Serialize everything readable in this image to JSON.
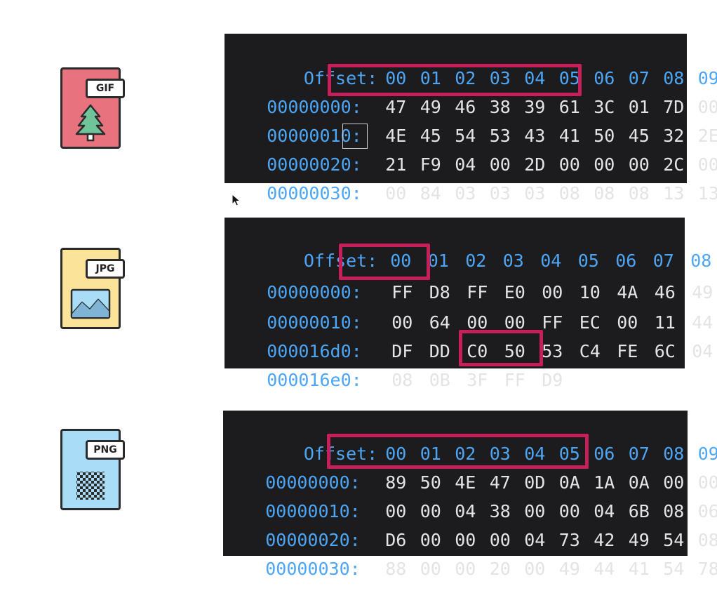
{
  "files": [
    {
      "type": "GIF",
      "label": "GIF",
      "color": "#e8737f",
      "art": "tree-icon"
    },
    {
      "type": "JPG",
      "label": "JPG",
      "color": "#fbe39a",
      "art": "landscape-image-icon"
    },
    {
      "type": "PNG",
      "label": "PNG",
      "color": "#a9dcf6",
      "art": "checkerboard-icon"
    }
  ],
  "hex": [
    {
      "header_label": "Offset:",
      "columns": [
        "00",
        "01",
        "02",
        "03",
        "04",
        "05",
        "06",
        "07",
        "08",
        "09"
      ],
      "rows": [
        {
          "offset": "00000000:",
          "bytes": [
            "47",
            "49",
            "46",
            "38",
            "39",
            "61",
            "3C",
            "01",
            "7D",
            "00"
          ]
        },
        {
          "offset": "00000010:",
          "bytes": [
            "4E",
            "45",
            "54",
            "53",
            "43",
            "41",
            "50",
            "45",
            "32",
            "2E"
          ]
        },
        {
          "offset": "00000020:",
          "bytes": [
            "21",
            "F9",
            "04",
            "00",
            "2D",
            "00",
            "00",
            "00",
            "2C",
            "00"
          ]
        },
        {
          "offset": "00000030:",
          "bytes": [
            "00",
            "84",
            "03",
            "03",
            "03",
            "08",
            "08",
            "08",
            "13",
            "13"
          ]
        }
      ]
    },
    {
      "header_label": "Offset:",
      "columns": [
        "00",
        "01",
        "02",
        "03",
        "04",
        "05",
        "06",
        "07",
        "08"
      ],
      "rows": [
        {
          "offset": "00000000:",
          "bytes": [
            "FF",
            "D8",
            "FF",
            "E0",
            "00",
            "10",
            "4A",
            "46",
            "49"
          ]
        },
        {
          "offset": "00000010:",
          "bytes": [
            "00",
            "64",
            "00",
            "00",
            "FF",
            "EC",
            "00",
            "11",
            "44"
          ]
        },
        {
          "offset": "000016d0:",
          "bytes": [
            "DF",
            "DD",
            "C0",
            "50",
            "53",
            "C4",
            "FE",
            "6C",
            "04"
          ]
        },
        {
          "offset": "000016e0:",
          "bytes": [
            "08",
            "0B",
            "3F",
            "FF",
            "D9",
            "",
            "",
            "",
            ""
          ]
        }
      ]
    },
    {
      "header_label": "Offset:",
      "columns": [
        "00",
        "01",
        "02",
        "03",
        "04",
        "05",
        "06",
        "07",
        "08",
        "09"
      ],
      "rows": [
        {
          "offset": "00000000:",
          "bytes": [
            "89",
            "50",
            "4E",
            "47",
            "0D",
            "0A",
            "1A",
            "0A",
            "00",
            "00"
          ]
        },
        {
          "offset": "00000010:",
          "bytes": [
            "00",
            "00",
            "04",
            "38",
            "00",
            "00",
            "04",
            "6B",
            "08",
            "06"
          ]
        },
        {
          "offset": "00000020:",
          "bytes": [
            "D6",
            "00",
            "00",
            "00",
            "04",
            "73",
            "42",
            "49",
            "54",
            "08"
          ]
        },
        {
          "offset": "00000030:",
          "bytes": [
            "88",
            "00",
            "00",
            "20",
            "00",
            "49",
            "44",
            "41",
            "54",
            "78"
          ]
        }
      ]
    }
  ],
  "colors": {
    "highlight": "#c6205a",
    "offset_blue": "#4da6f5",
    "panel_bg": "#1c1c1e"
  }
}
